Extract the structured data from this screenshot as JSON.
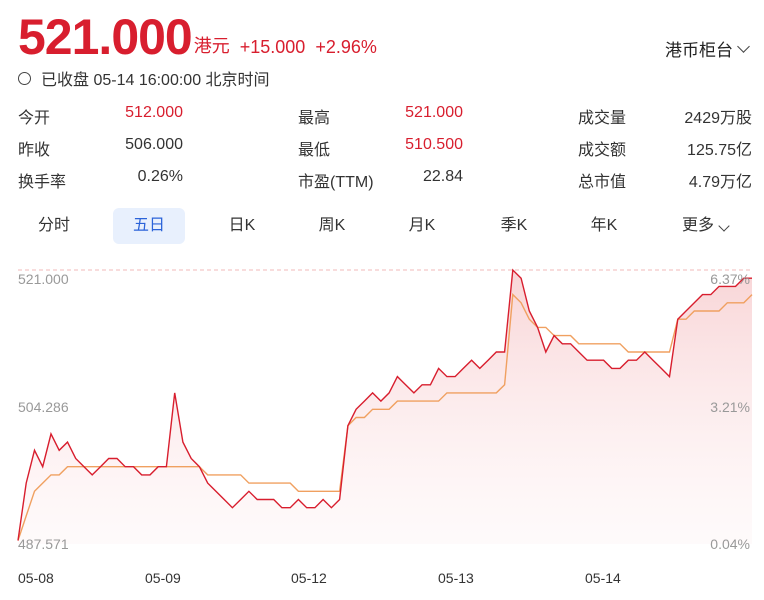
{
  "quote": {
    "price": "521.000",
    "currency": "港元",
    "change": "+15.000",
    "change_pct": "+2.96%",
    "exchange_selector": "港币柜台",
    "status": "已收盘 05-14 16:00:00 北京时间"
  },
  "stats": [
    [
      {
        "label": "今开",
        "value": "512.000",
        "color": "red"
      },
      {
        "label": "最高",
        "value": "521.000",
        "color": "red"
      },
      {
        "label": "成交量",
        "value": "2429万股",
        "color": "plain"
      }
    ],
    [
      {
        "label": "昨收",
        "value": "506.000",
        "color": "plain"
      },
      {
        "label": "最低",
        "value": "510.500",
        "color": "red"
      },
      {
        "label": "成交额",
        "value": "125.75亿",
        "color": "plain"
      }
    ],
    [
      {
        "label": "换手率",
        "value": "0.26%",
        "color": "plain"
      },
      {
        "label": "市盈(TTM)",
        "value": "22.84",
        "color": "plain"
      },
      {
        "label": "总市值",
        "value": "4.79万亿",
        "color": "plain"
      }
    ]
  ],
  "tabs": [
    "分时",
    "五日",
    "日K",
    "周K",
    "月K",
    "季K",
    "年K",
    "更多"
  ],
  "active_tab": "五日",
  "colors": {
    "accent_red": "#d81e2e",
    "avg_line": "#f0a060",
    "tab_blue": "#2b63d9"
  },
  "chart_data": {
    "type": "line",
    "y_left_ticks": [
      "521.000",
      "504.286",
      "487.571"
    ],
    "y_right_ticks": [
      "6.37%",
      "3.21%",
      "0.04%"
    ],
    "x_labels": [
      "05-08",
      "05-09",
      "05-12",
      "05-13",
      "05-14"
    ],
    "ylim": [
      487.571,
      521.0
    ],
    "series": [
      {
        "values": [
          488,
          495,
          499,
          497,
          501,
          499,
          500,
          498,
          497,
          496,
          497,
          498,
          498,
          497,
          497,
          496,
          496,
          497,
          497,
          506,
          500,
          498,
          497,
          495,
          494,
          493,
          492,
          493,
          494,
          493,
          493,
          493,
          492,
          492,
          493,
          492,
          492,
          493,
          492,
          493,
          502,
          504,
          505,
          506,
          505,
          506,
          508,
          507,
          506,
          507,
          507,
          509,
          508,
          508,
          509,
          510,
          509,
          510,
          511,
          511,
          521,
          520,
          516,
          514,
          511,
          513,
          512,
          512,
          511,
          510,
          510,
          510,
          509,
          509,
          510,
          510,
          511,
          510,
          509,
          508,
          515,
          516,
          517,
          518,
          518,
          519,
          519,
          519,
          520,
          520
        ]
      },
      {
        "values": [
          488,
          491,
          494,
          495,
          496,
          496,
          497,
          497,
          497,
          497,
          497,
          497,
          497,
          497,
          497,
          497,
          497,
          497,
          497,
          497,
          497,
          497,
          497,
          496,
          496,
          496,
          496,
          496,
          495,
          495,
          495,
          495,
          495,
          495,
          494,
          494,
          494,
          494,
          494,
          494,
          502,
          503,
          503,
          504,
          504,
          504,
          505,
          505,
          505,
          505,
          505,
          505,
          506,
          506,
          506,
          506,
          506,
          506,
          506,
          507,
          518,
          517,
          515,
          514,
          514,
          513,
          513,
          513,
          512,
          512,
          512,
          512,
          512,
          512,
          511,
          511,
          511,
          511,
          511,
          511,
          515,
          515,
          516,
          516,
          516,
          516,
          517,
          517,
          517,
          518
        ]
      }
    ]
  }
}
